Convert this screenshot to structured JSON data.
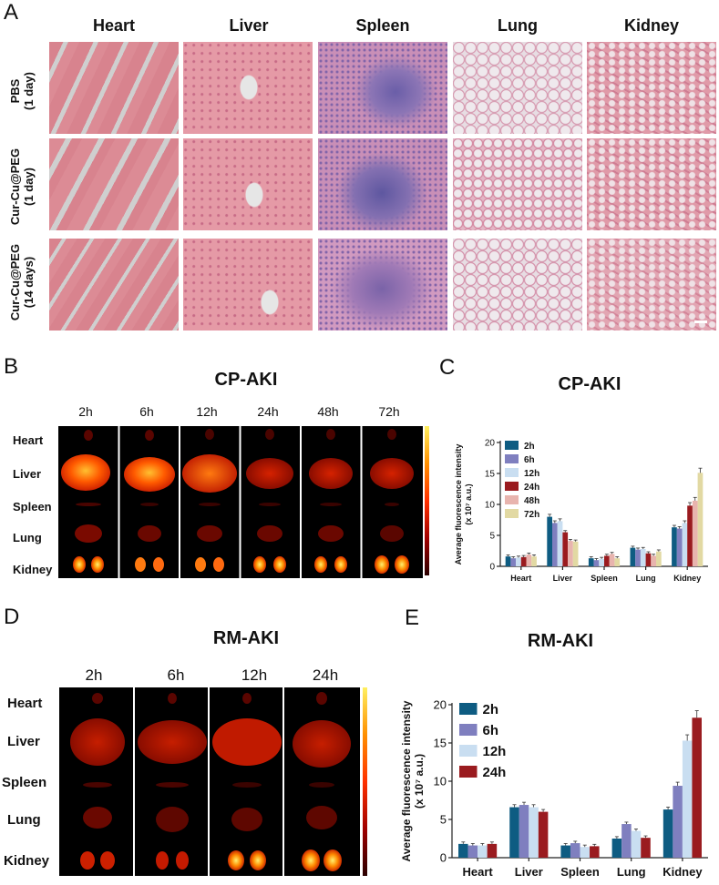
{
  "panelA": {
    "letter": "A",
    "columns": [
      "Heart",
      "Liver",
      "Spleen",
      "Lung",
      "Kidney"
    ],
    "rows": [
      "PBS\n(1 day)",
      "Cur-Cu@PEG\n(1 day)",
      "Cur-Cu@PEG\n(14 days)"
    ]
  },
  "panelB": {
    "letter": "B",
    "title": "CP-AKI",
    "times": [
      "2h",
      "6h",
      "12h",
      "24h",
      "48h",
      "72h"
    ],
    "organs": [
      "Heart",
      "Liver",
      "Spleen",
      "Lung",
      "Kidney"
    ]
  },
  "panelD": {
    "letter": "D",
    "title": "RM-AKI",
    "times": [
      "2h",
      "6h",
      "12h",
      "24h"
    ],
    "organs": [
      "Heart",
      "Liver",
      "Spleen",
      "Lung",
      "Kidney"
    ]
  },
  "chart_data": [
    {
      "letter": "C",
      "type": "bar",
      "title": "CP-AKI",
      "ylabel": "Average fluorescence intensity",
      "ylabel_unit": "(x 10⁷ a.u.)",
      "ylim": [
        0,
        20
      ],
      "yticks": [
        "0",
        "5",
        "10",
        "15",
        "20"
      ],
      "categories": [
        "Heart",
        "Liver",
        "Spleen",
        "Lung",
        "Kidney"
      ],
      "legend_position": "top-left",
      "series": [
        {
          "name": "2h",
          "color": "#0e5c82",
          "values": [
            1.6,
            8.0,
            1.3,
            3.0,
            6.3
          ]
        },
        {
          "name": "6h",
          "color": "#7f7fbf",
          "values": [
            1.3,
            7.0,
            1.0,
            2.7,
            6.1
          ]
        },
        {
          "name": "12h",
          "color": "#c9def1",
          "values": [
            1.4,
            7.3,
            1.2,
            2.8,
            7.0
          ]
        },
        {
          "name": "24h",
          "color": "#9a1b1f",
          "values": [
            1.5,
            5.5,
            1.7,
            2.1,
            9.8
          ]
        },
        {
          "name": "48h",
          "color": "#e8b4ae",
          "values": [
            1.9,
            4.1,
            2.0,
            1.7,
            10.6
          ]
        },
        {
          "name": "72h",
          "color": "#e2d9a3",
          "values": [
            1.6,
            4.0,
            1.3,
            2.4,
            15.1
          ]
        }
      ]
    },
    {
      "letter": "E",
      "type": "bar",
      "title": "RM-AKI",
      "ylabel": "Average fluorescence intensity",
      "ylabel_unit": "(x 10⁷ a.u.)",
      "ylim": [
        0,
        20
      ],
      "yticks": [
        "0",
        "5",
        "10",
        "15",
        "20"
      ],
      "categories": [
        "Heart",
        "Liver",
        "Spleen",
        "Lung",
        "Kidney"
      ],
      "legend_position": "top-left",
      "series": [
        {
          "name": "2h",
          "color": "#0e5c82",
          "values": [
            1.8,
            6.6,
            1.6,
            2.5,
            6.3
          ]
        },
        {
          "name": "6h",
          "color": "#7f7fbf",
          "values": [
            1.6,
            6.9,
            1.9,
            4.4,
            9.4
          ]
        },
        {
          "name": "12h",
          "color": "#c9def1",
          "values": [
            1.6,
            6.6,
            1.4,
            3.5,
            15.3
          ]
        },
        {
          "name": "24h",
          "color": "#9a1b1f",
          "values": [
            1.8,
            6.0,
            1.5,
            2.6,
            18.3
          ]
        }
      ]
    }
  ]
}
